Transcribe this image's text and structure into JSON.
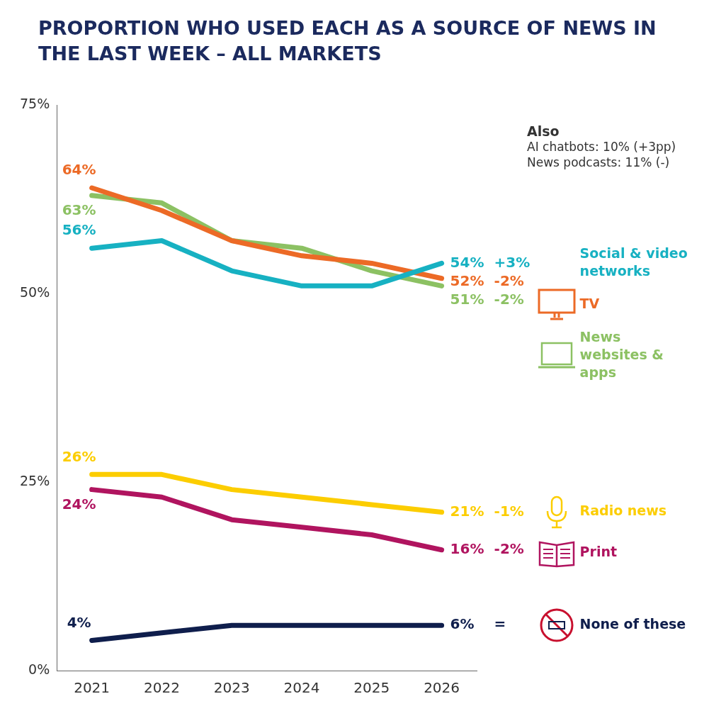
{
  "chart_data": {
    "type": "line",
    "title": "PROPORTION WHO USED EACH AS A SOURCE OF NEWS IN THE LAST WEEK – ALL MARKETS",
    "categories": [
      "2021",
      "2022",
      "2023",
      "2024",
      "2025",
      "2026"
    ],
    "series": [
      {
        "name": "Social & video networks",
        "color": "#17b1c2",
        "values": [
          56,
          57,
          53,
          51,
          51,
          54
        ],
        "value_labels": [
          "56%",
          null,
          null,
          null,
          null,
          "54% +3%"
        ]
      },
      {
        "name": "TV",
        "color": "#ec6a26",
        "values": [
          64,
          61,
          57,
          55,
          54,
          52
        ],
        "value_labels": [
          "64%",
          null,
          null,
          null,
          null,
          "52% -2%"
        ]
      },
      {
        "name": "News websites & apps",
        "color": "#8cc163",
        "values": [
          63,
          62,
          57,
          56,
          53,
          51
        ],
        "value_labels": [
          "63%",
          null,
          null,
          null,
          null,
          "51% -2%"
        ]
      },
      {
        "name": "Radio news",
        "color": "#fccd00",
        "values": [
          26,
          26,
          24,
          23,
          22,
          21
        ],
        "value_labels": [
          "26%",
          null,
          null,
          null,
          null,
          "21% -1%"
        ]
      },
      {
        "name": "Print",
        "color": "#b0145f",
        "values": [
          24,
          23,
          20,
          19,
          18,
          16
        ],
        "value_labels": [
          "24%",
          null,
          null,
          null,
          null,
          "16% -2%"
        ]
      },
      {
        "name": "None of these",
        "color": "#0f1e4c",
        "values": [
          4,
          5,
          6,
          6,
          6,
          6
        ],
        "value_labels": [
          "4%",
          null,
          null,
          null,
          null,
          "6% ="
        ]
      }
    ],
    "ylim": [
      0,
      75
    ],
    "yticks": [
      {
        "value": 0,
        "label": "0%"
      },
      {
        "value": 25,
        "label": "25%"
      },
      {
        "value": 50,
        "label": "50%"
      },
      {
        "value": 75,
        "label": "75%"
      }
    ],
    "legend": "right",
    "annotations": [
      "Also",
      "AI chatbots: 10% (+3pp)",
      "News podcasts: 11% (-)"
    ]
  }
}
